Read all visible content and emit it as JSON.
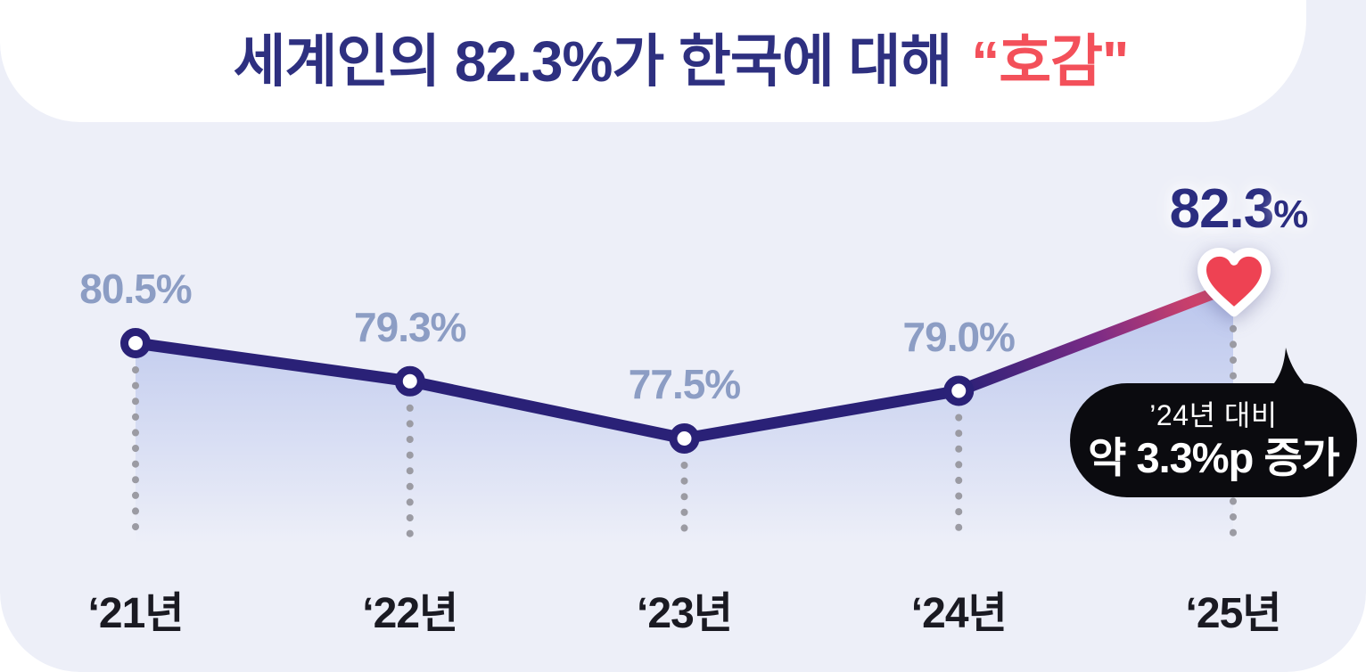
{
  "header": {
    "title_main": "세계인의 82.3%가 한국에 대해",
    "title_highlight": "“호감\""
  },
  "chart_data": {
    "type": "line",
    "title": "세계인의 82.3%가 한국에 대해 “호감\"",
    "categories": [
      "‘21년",
      "‘22년",
      "‘23년",
      "‘24년",
      "‘25년"
    ],
    "values": [
      80.5,
      79.3,
      77.5,
      79.0,
      82.3
    ],
    "value_labels": [
      "80.5%",
      "79.3%",
      "77.5%",
      "79.0%",
      "82.3%"
    ],
    "unit": "%",
    "ylim": [
      74,
      84
    ],
    "grid": false,
    "legend": false,
    "annotations": [
      "’24년 대비 약 3.3%p 증가"
    ]
  },
  "annotation_bubble": {
    "line1": "’24년 대비",
    "line2": "약 3.3%p 증가"
  },
  "icons": {
    "heart_marker": "heart-icon"
  },
  "colors": {
    "card_lavender": "#edeff8",
    "band_white": "#ffffff",
    "title_navy": "#2e3080",
    "highlight_red": "#f3505a",
    "line_navy": "#2a2177",
    "line_purple_mid": "#7b2b86",
    "line_pink": "#ee4a5f",
    "area_fill_blue": "#b7c3ec",
    "dotted_line_gray": "#9b9ba3",
    "value_label_gray_blue": "#8c9dc4",
    "final_label_navy": "#2b2d80",
    "axis_label_dark": "#1a1a22",
    "bubble_black": "#0b0b0f",
    "bubble_text_white": "#ffffff",
    "heart_red": "#ee4253"
  }
}
